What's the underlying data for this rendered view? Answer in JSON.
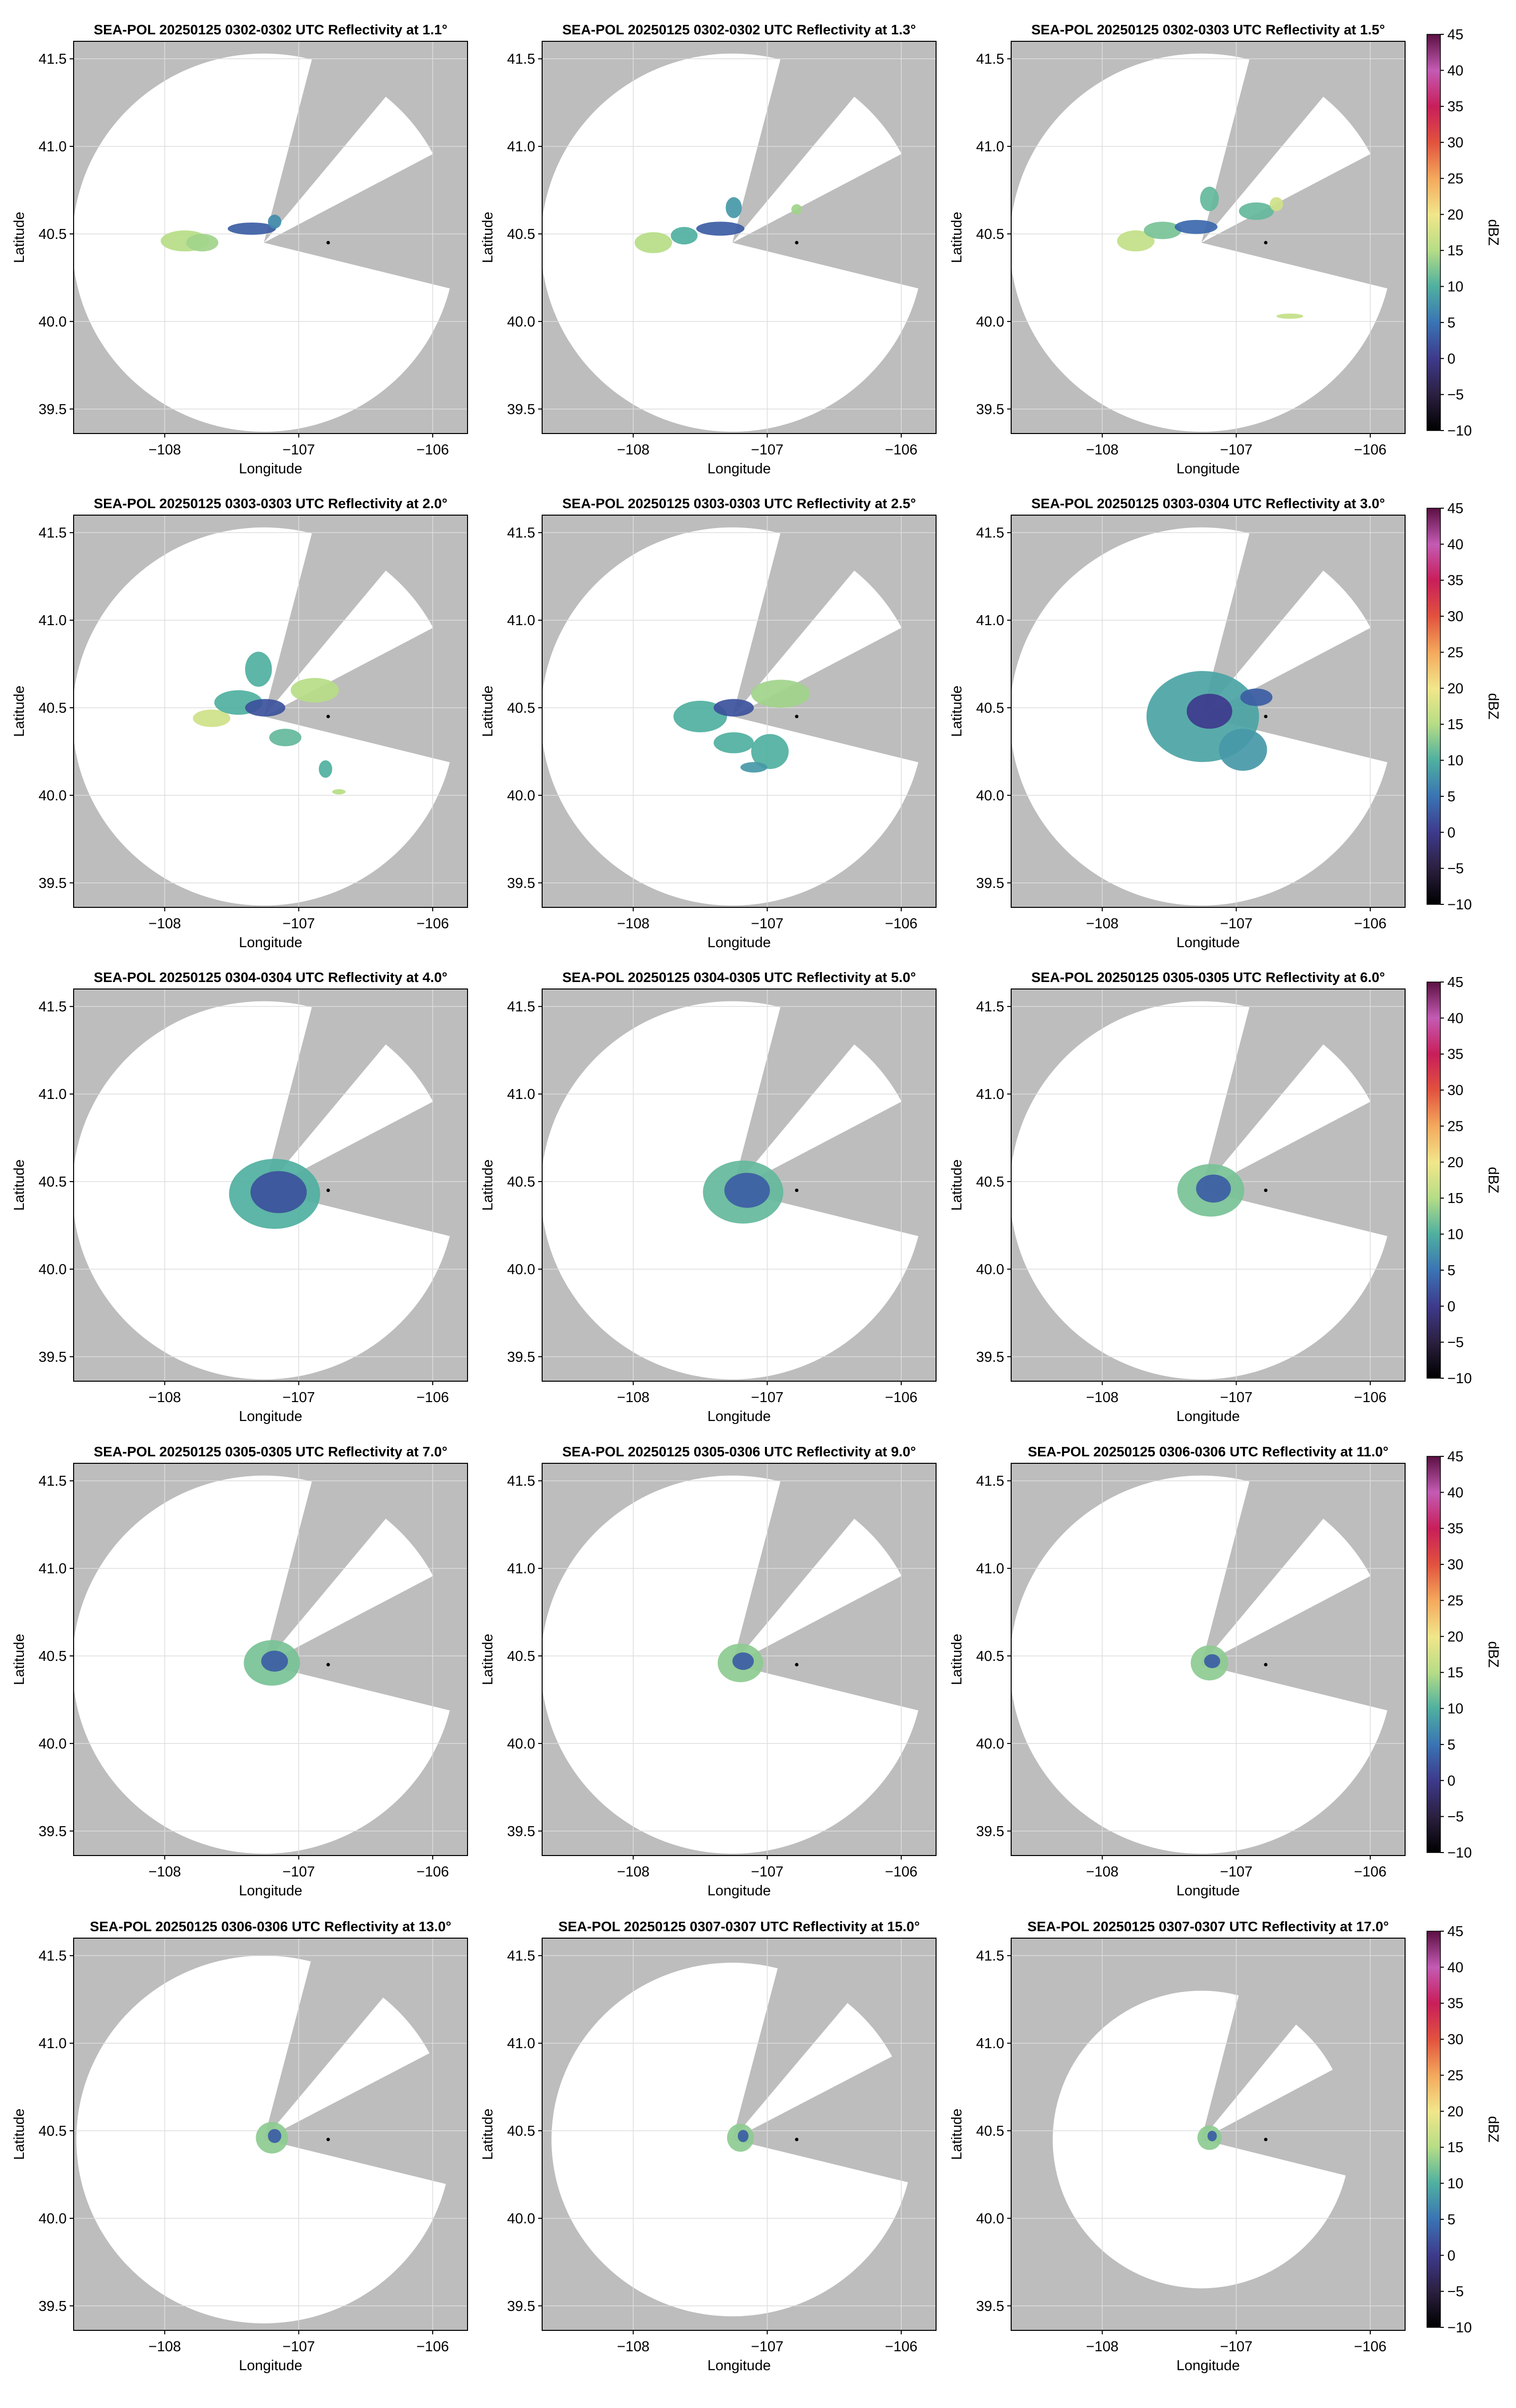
{
  "figure": {
    "background": "#ffffff",
    "out_of_range_color": "#bdbdbd",
    "grid_color": "#dddddd",
    "station_marker_color": "#000000"
  },
  "chart_data": [
    {
      "type": "heatmap",
      "title": "SEA-POL 20250125 0302-0302 UTC Reflectivity at 1.1°",
      "xlabel": "Longitude",
      "ylabel": "Latitude",
      "elevation_deg": 1.1,
      "xlim": [
        -108.68,
        -105.74
      ],
      "ylim": [
        39.36,
        41.6
      ],
      "xticks": [
        -108,
        -107,
        -106
      ],
      "yticks": [
        39.5,
        40.0,
        40.5,
        41.0,
        41.5
      ],
      "grid": true,
      "echo_regions": [
        {
          "lon": -107.85,
          "lat": 40.46,
          "rlon": 0.18,
          "rlat": 0.06,
          "dbz": 15
        },
        {
          "lon": -107.72,
          "lat": 40.45,
          "rlon": 0.12,
          "rlat": 0.05,
          "dbz": 14
        },
        {
          "lon": -107.35,
          "lat": 40.53,
          "rlon": 0.18,
          "rlat": 0.035,
          "dbz": 3
        },
        {
          "lon": -107.18,
          "lat": 40.57,
          "rlon": 0.05,
          "rlat": 0.04,
          "dbz": 7
        }
      ]
    },
    {
      "type": "heatmap",
      "title": "SEA-POL 20250125 0302-0302 UTC Reflectivity at 1.3°",
      "xlabel": "Longitude",
      "ylabel": "Latitude",
      "elevation_deg": 1.3,
      "xlim": [
        -108.68,
        -105.74
      ],
      "ylim": [
        39.36,
        41.6
      ],
      "xticks": [
        -108,
        -107,
        -106
      ],
      "yticks": [
        39.5,
        40.0,
        40.5,
        41.0,
        41.5
      ],
      "grid": true,
      "echo_regions": [
        {
          "lon": -107.85,
          "lat": 40.45,
          "rlon": 0.14,
          "rlat": 0.06,
          "dbz": 15
        },
        {
          "lon": -107.62,
          "lat": 40.49,
          "rlon": 0.1,
          "rlat": 0.05,
          "dbz": 10
        },
        {
          "lon": -107.35,
          "lat": 40.53,
          "rlon": 0.18,
          "rlat": 0.04,
          "dbz": 3
        },
        {
          "lon": -107.25,
          "lat": 40.65,
          "rlon": 0.06,
          "rlat": 0.06,
          "dbz": 8
        },
        {
          "lon": -106.78,
          "lat": 40.64,
          "rlon": 0.04,
          "rlat": 0.03,
          "dbz": 14
        }
      ]
    },
    {
      "type": "heatmap",
      "title": "SEA-POL 20250125 0302-0303 UTC Reflectivity at 1.5°",
      "xlabel": "Longitude",
      "ylabel": "Latitude",
      "elevation_deg": 1.5,
      "xlim": [
        -108.68,
        -105.74
      ],
      "ylim": [
        39.36,
        41.6
      ],
      "xticks": [
        -108,
        -107,
        -106
      ],
      "yticks": [
        39.5,
        40.0,
        40.5,
        41.0,
        41.5
      ],
      "grid": true,
      "echo_regions": [
        {
          "lon": -107.75,
          "lat": 40.46,
          "rlon": 0.14,
          "rlat": 0.06,
          "dbz": 16
        },
        {
          "lon": -107.55,
          "lat": 40.52,
          "rlon": 0.14,
          "rlat": 0.05,
          "dbz": 12
        },
        {
          "lon": -107.3,
          "lat": 40.54,
          "rlon": 0.16,
          "rlat": 0.04,
          "dbz": 4
        },
        {
          "lon": -107.2,
          "lat": 40.7,
          "rlon": 0.07,
          "rlat": 0.07,
          "dbz": 11
        },
        {
          "lon": -106.85,
          "lat": 40.63,
          "rlon": 0.13,
          "rlat": 0.05,
          "dbz": 11
        },
        {
          "lon": -106.7,
          "lat": 40.67,
          "rlon": 0.05,
          "rlat": 0.04,
          "dbz": 17
        },
        {
          "lon": -106.6,
          "lat": 40.03,
          "rlon": 0.1,
          "rlat": 0.015,
          "dbz": 16
        }
      ]
    },
    {
      "type": "heatmap",
      "title": "SEA-POL 20250125 0303-0303 UTC Reflectivity at 2.0°",
      "xlabel": "Longitude",
      "ylabel": "Latitude",
      "elevation_deg": 2.0,
      "xlim": [
        -108.68,
        -105.74
      ],
      "ylim": [
        39.36,
        41.6
      ],
      "xticks": [
        -108,
        -107,
        -106
      ],
      "yticks": [
        39.5,
        40.0,
        40.5,
        41.0,
        41.5
      ],
      "grid": true,
      "echo_regions": [
        {
          "lon": -107.65,
          "lat": 40.44,
          "rlon": 0.14,
          "rlat": 0.05,
          "dbz": 17
        },
        {
          "lon": -107.45,
          "lat": 40.53,
          "rlon": 0.18,
          "rlat": 0.07,
          "dbz": 10
        },
        {
          "lon": -107.25,
          "lat": 40.5,
          "rlon": 0.15,
          "rlat": 0.05,
          "dbz": 2
        },
        {
          "lon": -107.3,
          "lat": 40.72,
          "rlon": 0.1,
          "rlat": 0.1,
          "dbz": 10
        },
        {
          "lon": -106.88,
          "lat": 40.6,
          "rlon": 0.18,
          "rlat": 0.07,
          "dbz": 15
        },
        {
          "lon": -107.1,
          "lat": 40.33,
          "rlon": 0.12,
          "rlat": 0.05,
          "dbz": 11
        },
        {
          "lon": -106.8,
          "lat": 40.15,
          "rlon": 0.05,
          "rlat": 0.05,
          "dbz": 10
        },
        {
          "lon": -106.7,
          "lat": 40.02,
          "rlon": 0.05,
          "rlat": 0.015,
          "dbz": 15
        }
      ]
    },
    {
      "type": "heatmap",
      "title": "SEA-POL 20250125 0303-0303 UTC Reflectivity at 2.5°",
      "xlabel": "Longitude",
      "ylabel": "Latitude",
      "elevation_deg": 2.5,
      "xlim": [
        -108.68,
        -105.74
      ],
      "ylim": [
        39.36,
        41.6
      ],
      "xticks": [
        -108,
        -107,
        -106
      ],
      "yticks": [
        39.5,
        40.0,
        40.5,
        41.0,
        41.5
      ],
      "grid": true,
      "echo_regions": [
        {
          "lon": -107.5,
          "lat": 40.45,
          "rlon": 0.2,
          "rlat": 0.09,
          "dbz": 10
        },
        {
          "lon": -107.25,
          "lat": 40.5,
          "rlon": 0.15,
          "rlat": 0.05,
          "dbz": 2
        },
        {
          "lon": -106.9,
          "lat": 40.58,
          "rlon": 0.22,
          "rlat": 0.08,
          "dbz": 14
        },
        {
          "lon": -107.25,
          "lat": 40.3,
          "rlon": 0.15,
          "rlat": 0.06,
          "dbz": 10
        },
        {
          "lon": -106.98,
          "lat": 40.25,
          "rlon": 0.14,
          "rlat": 0.1,
          "dbz": 10
        },
        {
          "lon": -107.1,
          "lat": 40.16,
          "rlon": 0.1,
          "rlat": 0.03,
          "dbz": 8
        }
      ]
    },
    {
      "type": "heatmap",
      "title": "SEA-POL 20250125 0303-0304 UTC Reflectivity at 3.0°",
      "xlabel": "Longitude",
      "ylabel": "Latitude",
      "elevation_deg": 3.0,
      "xlim": [
        -108.68,
        -105.74
      ],
      "ylim": [
        39.36,
        41.6
      ],
      "xticks": [
        -108,
        -107,
        -106
      ],
      "yticks": [
        39.5,
        40.0,
        40.5,
        41.0,
        41.5
      ],
      "grid": true,
      "echo_regions": [
        {
          "lon": -107.25,
          "lat": 40.45,
          "rlon": 0.42,
          "rlat": 0.26,
          "dbz": 9
        },
        {
          "lon": -107.2,
          "lat": 40.48,
          "rlon": 0.17,
          "rlat": 0.1,
          "dbz": 0
        },
        {
          "lon": -106.95,
          "lat": 40.26,
          "rlon": 0.18,
          "rlat": 0.12,
          "dbz": 8
        },
        {
          "lon": -106.85,
          "lat": 40.56,
          "rlon": 0.12,
          "rlat": 0.05,
          "dbz": 3
        }
      ]
    },
    {
      "type": "heatmap",
      "title": "SEA-POL 20250125 0304-0304 UTC Reflectivity at 4.0°",
      "xlabel": "Longitude",
      "ylabel": "Latitude",
      "elevation_deg": 4.0,
      "xlim": [
        -108.68,
        -105.74
      ],
      "ylim": [
        39.36,
        41.6
      ],
      "xticks": [
        -108,
        -107,
        -106
      ],
      "yticks": [
        39.5,
        40.0,
        40.5,
        41.0,
        41.5
      ],
      "grid": true,
      "echo_regions": [
        {
          "lon": -107.18,
          "lat": 40.43,
          "rlon": 0.34,
          "rlat": 0.2,
          "dbz": 10
        },
        {
          "lon": -107.15,
          "lat": 40.44,
          "rlon": 0.21,
          "rlat": 0.12,
          "dbz": 2
        }
      ]
    },
    {
      "type": "heatmap",
      "title": "SEA-POL 20250125 0304-0305 UTC Reflectivity at 5.0°",
      "xlabel": "Longitude",
      "ylabel": "Latitude",
      "elevation_deg": 5.0,
      "xlim": [
        -108.68,
        -105.74
      ],
      "ylim": [
        39.36,
        41.6
      ],
      "xticks": [
        -108,
        -107,
        -106
      ],
      "yticks": [
        39.5,
        40.0,
        40.5,
        41.0,
        41.5
      ],
      "grid": true,
      "echo_regions": [
        {
          "lon": -107.18,
          "lat": 40.44,
          "rlon": 0.3,
          "rlat": 0.18,
          "dbz": 11
        },
        {
          "lon": -107.15,
          "lat": 40.45,
          "rlon": 0.17,
          "rlat": 0.1,
          "dbz": 3
        }
      ]
    },
    {
      "type": "heatmap",
      "title": "SEA-POL 20250125 0305-0305 UTC Reflectivity at 6.0°",
      "xlabel": "Longitude",
      "ylabel": "Latitude",
      "elevation_deg": 6.0,
      "xlim": [
        -108.68,
        -105.74
      ],
      "ylim": [
        39.36,
        41.6
      ],
      "xticks": [
        -108,
        -107,
        -106
      ],
      "yticks": [
        39.5,
        40.0,
        40.5,
        41.0,
        41.5
      ],
      "grid": true,
      "echo_regions": [
        {
          "lon": -107.19,
          "lat": 40.45,
          "rlon": 0.25,
          "rlat": 0.15,
          "dbz": 12
        },
        {
          "lon": -107.17,
          "lat": 40.46,
          "rlon": 0.13,
          "rlat": 0.08,
          "dbz": 3
        }
      ]
    },
    {
      "type": "heatmap",
      "title": "SEA-POL 20250125 0305-0305 UTC Reflectivity at 7.0°",
      "xlabel": "Longitude",
      "ylabel": "Latitude",
      "elevation_deg": 7.0,
      "xlim": [
        -108.68,
        -105.74
      ],
      "ylim": [
        39.36,
        41.6
      ],
      "xticks": [
        -108,
        -107,
        -106
      ],
      "yticks": [
        39.5,
        40.0,
        40.5,
        41.0,
        41.5
      ],
      "grid": true,
      "echo_regions": [
        {
          "lon": -107.2,
          "lat": 40.46,
          "rlon": 0.21,
          "rlat": 0.13,
          "dbz": 12
        },
        {
          "lon": -107.18,
          "lat": 40.47,
          "rlon": 0.1,
          "rlat": 0.06,
          "dbz": 3
        }
      ]
    },
    {
      "type": "heatmap",
      "title": "SEA-POL 20250125 0305-0306 UTC Reflectivity at 9.0°",
      "xlabel": "Longitude",
      "ylabel": "Latitude",
      "elevation_deg": 9.0,
      "xlim": [
        -108.68,
        -105.74
      ],
      "ylim": [
        39.36,
        41.6
      ],
      "xticks": [
        -108,
        -107,
        -106
      ],
      "yticks": [
        39.5,
        40.0,
        40.5,
        41.0,
        41.5
      ],
      "grid": true,
      "echo_regions": [
        {
          "lon": -107.2,
          "lat": 40.46,
          "rlon": 0.17,
          "rlat": 0.11,
          "dbz": 13
        },
        {
          "lon": -107.18,
          "lat": 40.47,
          "rlon": 0.08,
          "rlat": 0.05,
          "dbz": 3
        }
      ]
    },
    {
      "type": "heatmap",
      "title": "SEA-POL 20250125 0306-0306 UTC Reflectivity at 11.0°",
      "xlabel": "Longitude",
      "ylabel": "Latitude",
      "elevation_deg": 11.0,
      "xlim": [
        -108.68,
        -105.74
      ],
      "ylim": [
        39.36,
        41.6
      ],
      "xticks": [
        -108,
        -107,
        -106
      ],
      "yticks": [
        39.5,
        40.0,
        40.5,
        41.0,
        41.5
      ],
      "grid": true,
      "echo_regions": [
        {
          "lon": -107.2,
          "lat": 40.46,
          "rlon": 0.14,
          "rlat": 0.1,
          "dbz": 13
        },
        {
          "lon": -107.18,
          "lat": 40.47,
          "rlon": 0.06,
          "rlat": 0.04,
          "dbz": 3
        }
      ]
    },
    {
      "type": "heatmap",
      "title": "SEA-POL 20250125 0306-0306 UTC Reflectivity at 13.0°",
      "xlabel": "Longitude",
      "ylabel": "Latitude",
      "elevation_deg": 13.0,
      "xlim": [
        -108.68,
        -105.74
      ],
      "ylim": [
        39.36,
        41.6
      ],
      "xticks": [
        -108,
        -107,
        -106
      ],
      "yticks": [
        39.5,
        40.0,
        40.5,
        41.0,
        41.5
      ],
      "grid": true,
      "echo_regions": [
        {
          "lon": -107.2,
          "lat": 40.46,
          "rlon": 0.12,
          "rlat": 0.09,
          "dbz": 13
        },
        {
          "lon": -107.18,
          "lat": 40.47,
          "rlon": 0.05,
          "rlat": 0.04,
          "dbz": 3
        }
      ]
    },
    {
      "type": "heatmap",
      "title": "SEA-POL 20250125 0307-0307 UTC Reflectivity at 15.0°",
      "xlabel": "Longitude",
      "ylabel": "Latitude",
      "elevation_deg": 15.0,
      "xlim": [
        -108.68,
        -105.74
      ],
      "ylim": [
        39.36,
        41.6
      ],
      "xticks": [
        -108,
        -107,
        -106
      ],
      "yticks": [
        39.5,
        40.0,
        40.5,
        41.0,
        41.5
      ],
      "grid": true,
      "echo_regions": [
        {
          "lon": -107.2,
          "lat": 40.46,
          "rlon": 0.1,
          "rlat": 0.08,
          "dbz": 13
        },
        {
          "lon": -107.18,
          "lat": 40.47,
          "rlon": 0.04,
          "rlat": 0.035,
          "dbz": 3
        }
      ]
    },
    {
      "type": "heatmap",
      "title": "SEA-POL 20250125 0307-0307 UTC Reflectivity at 17.0°",
      "xlabel": "Longitude",
      "ylabel": "Latitude",
      "elevation_deg": 17.0,
      "xlim": [
        -108.68,
        -105.74
      ],
      "ylim": [
        39.36,
        41.6
      ],
      "xticks": [
        -108,
        -107,
        -106
      ],
      "yticks": [
        39.5,
        40.0,
        40.5,
        41.0,
        41.5
      ],
      "grid": true,
      "echo_regions": [
        {
          "lon": -107.2,
          "lat": 40.46,
          "rlon": 0.09,
          "rlat": 0.07,
          "dbz": 13
        },
        {
          "lon": -107.18,
          "lat": 40.47,
          "rlon": 0.035,
          "rlat": 0.03,
          "dbz": 3
        }
      ]
    }
  ],
  "radar": {
    "range_center": {
      "lon": -107.26,
      "lat": 40.45
    },
    "range_radius_deg": {
      "lon": 1.43,
      "lat": 1.08
    },
    "range_radius_deg_by_elevation": {
      "13.0": {
        "lon": 1.4,
        "lat": 1.05
      },
      "15.0": {
        "lon": 1.35,
        "lat": 1.01
      },
      "17.0": {
        "lon": 1.11,
        "lat": 0.85
      }
    },
    "blocked_sectors_bearing_deg": [
      [
        14.5,
        39.5
      ],
      [
        62.0,
        104.0
      ]
    ],
    "station_marker": {
      "lon": -106.78,
      "lat": 40.45
    }
  },
  "colorbar": {
    "label": "dBZ",
    "min": -10,
    "max": 45,
    "ticks": [
      45,
      40,
      35,
      30,
      25,
      20,
      15,
      10,
      5,
      0,
      -5,
      -10
    ],
    "tick_labels": [
      "45",
      "40",
      "35",
      "30",
      "25",
      "20",
      "15",
      "10",
      "5",
      "0",
      "−5",
      "−10"
    ],
    "color_stops": [
      {
        "v": -10,
        "c": "#000000"
      },
      {
        "v": -5,
        "c": "#2b2040"
      },
      {
        "v": 0,
        "c": "#3e3a8c"
      },
      {
        "v": 5,
        "c": "#3a74b4"
      },
      {
        "v": 10,
        "c": "#4fb0a0"
      },
      {
        "v": 15,
        "c": "#b6dd86"
      },
      {
        "v": 20,
        "c": "#f2e68a"
      },
      {
        "v": 25,
        "c": "#f4a95c"
      },
      {
        "v": 30,
        "c": "#e2523e"
      },
      {
        "v": 35,
        "c": "#c81e5a"
      },
      {
        "v": 40,
        "c": "#c45bb4"
      },
      {
        "v": 45,
        "c": "#5b1042"
      }
    ]
  }
}
